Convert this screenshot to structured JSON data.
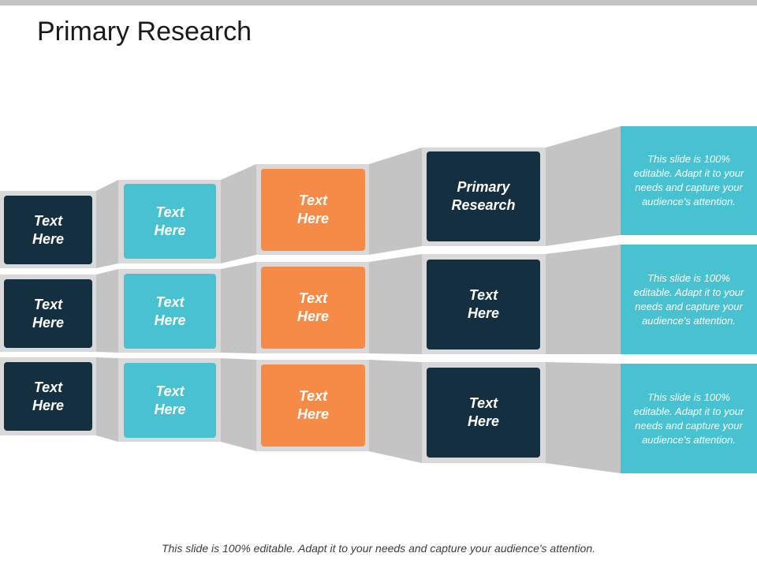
{
  "slide": {
    "title": "Primary Research",
    "footer": "This slide is 100% editable. Adapt it to your needs and capture your audience's attention."
  },
  "colors": {
    "navy": "#142f40",
    "teal": "#48c1d1",
    "orange": "#f68b47",
    "band_gray": "#c4c4c4",
    "panel_gray": "#d9d9d9"
  },
  "columns": [
    {
      "tiles": [
        "Text\nHere",
        "Text\nHere",
        "Text\nHere"
      ]
    },
    {
      "tiles": [
        "Text\nHere",
        "Text\nHere",
        "Text\nHere"
      ]
    },
    {
      "tiles": [
        "Text\nHere",
        "Text\nHere",
        "Text\nHere"
      ]
    },
    {
      "tiles": [
        "Primary\nResearch",
        "Text\nHere",
        "Text\nHere"
      ]
    }
  ],
  "notes": [
    "This slide is 100% editable. Adapt it to your needs and capture your audience's attention.",
    "This slide is 100% editable. Adapt it to your needs and capture your audience's attention.",
    "This slide is 100% editable. Adapt it to your needs and capture your audience's attention."
  ]
}
